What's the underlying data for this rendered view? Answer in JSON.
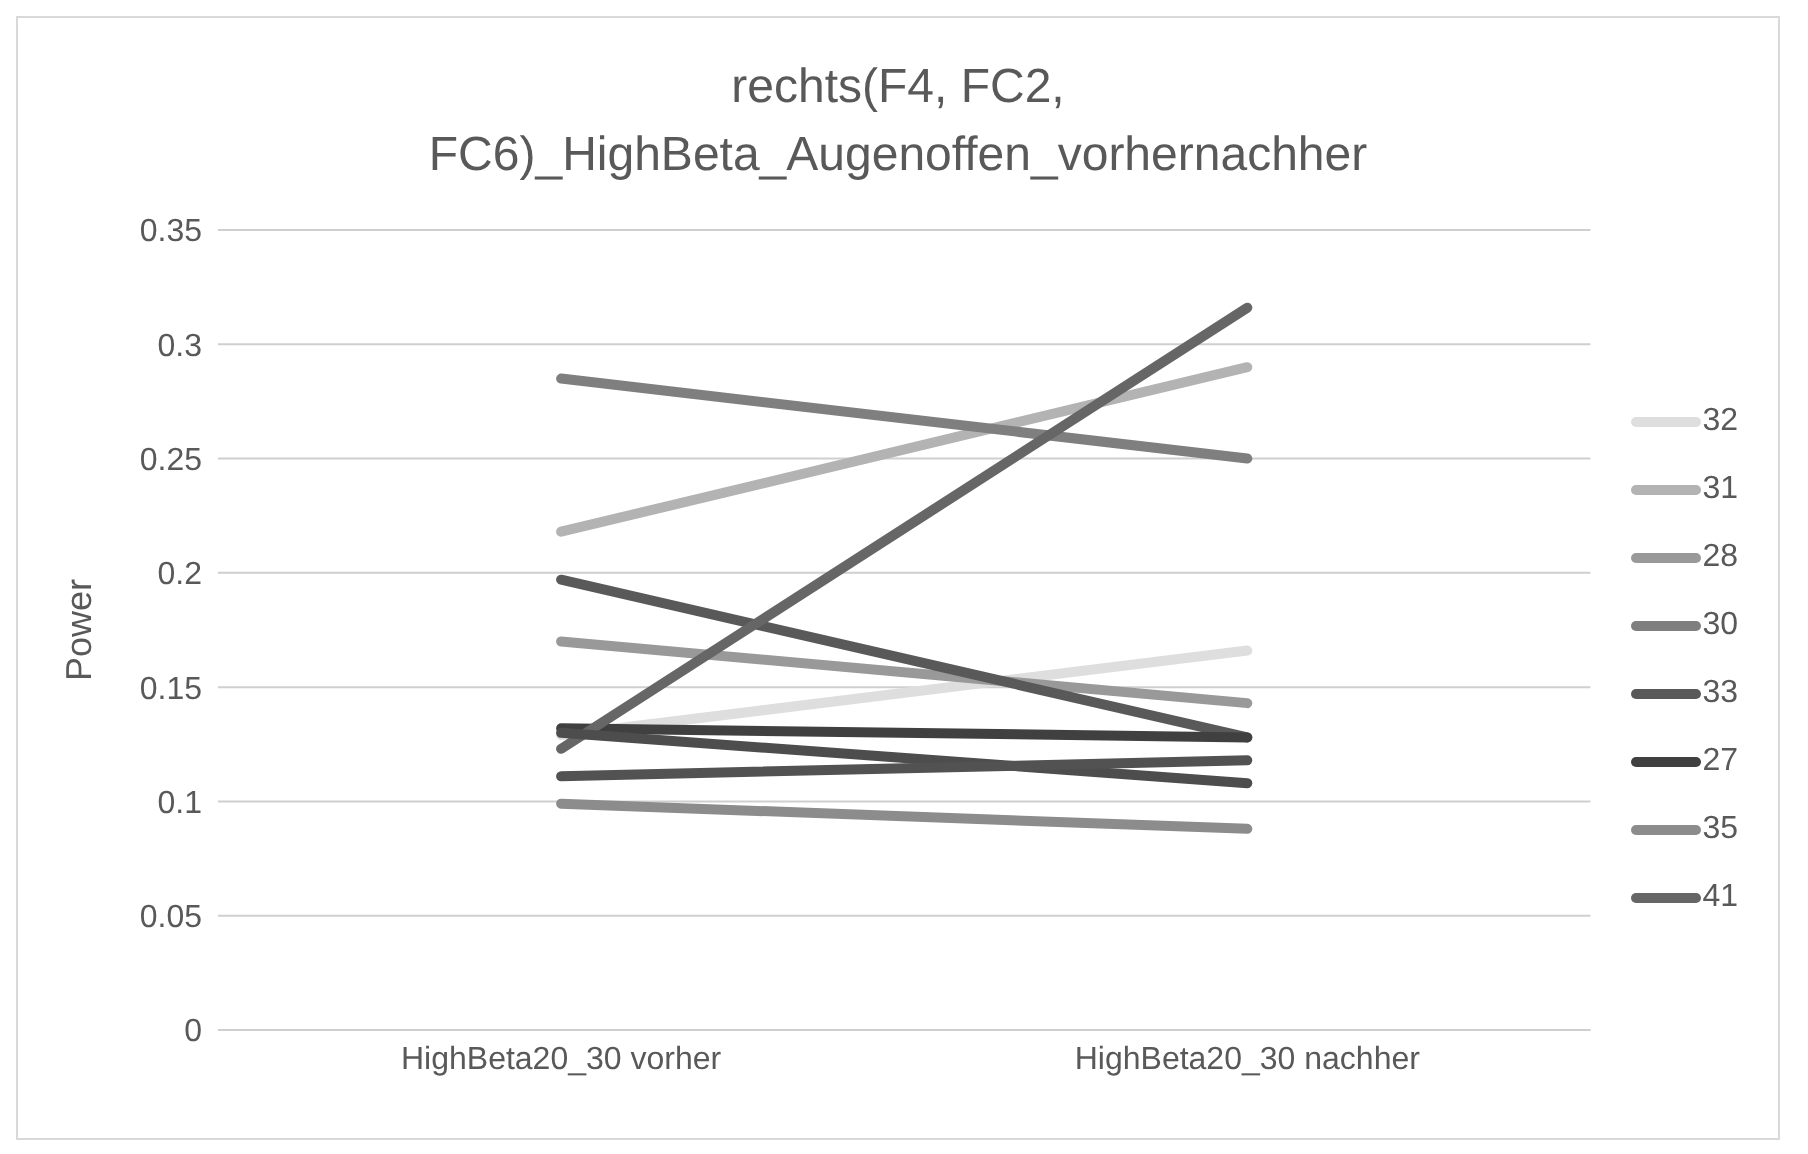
{
  "chart_data": {
    "type": "line",
    "title": "rechts(F4, FC2, FC6)_HighBeta_Augenoffen_vorhernachher",
    "ylabel": "Power",
    "categories": [
      "HighBeta20_30 vorher",
      "HighBeta20_30 nachher"
    ],
    "ylim": [
      0,
      0.35
    ],
    "yticks": [
      0,
      0.05,
      0.1,
      0.15,
      0.2,
      0.25,
      0.3,
      0.35
    ],
    "grid": "y",
    "legend": "right",
    "marker": "none",
    "line_style": "solid",
    "series": [
      {
        "name": "32",
        "color": "#dedede",
        "values": [
          0.129,
          0.166
        ]
      },
      {
        "name": "31",
        "color": "#b3b3b3",
        "values": [
          0.218,
          0.29
        ]
      },
      {
        "name": "28",
        "color": "#999999",
        "values": [
          0.17,
          0.143
        ]
      },
      {
        "name": "30",
        "color": "#7f7f7f",
        "values": [
          0.285,
          0.25
        ]
      },
      {
        "name": "33",
        "color": "#595959",
        "values": [
          0.197,
          0.128
        ]
      },
      {
        "name": "27",
        "color": "#404040",
        "values": [
          0.132,
          0.128
        ]
      },
      {
        "name": "35",
        "color": "#8c8c8c",
        "values": [
          0.099,
          0.088
        ]
      },
      {
        "name": "41",
        "color": "#666666",
        "values": [
          0.123,
          0.316
        ]
      },
      {
        "color": "#4d4d4d",
        "values": [
          0.13,
          0.108
        ]
      },
      {
        "color": "#525252",
        "values": [
          0.111,
          0.118
        ]
      }
    ]
  }
}
